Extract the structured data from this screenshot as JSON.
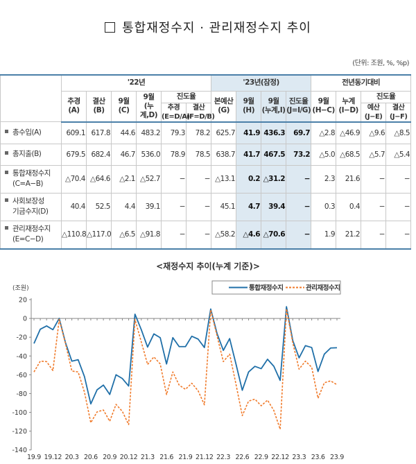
{
  "title": "통합재정수지 · 관리재정수지 추이",
  "unit": "(단위: 조원, %, %p)",
  "table": {
    "groups": {
      "y22": "'22년",
      "y23": "'23년(잠정)",
      "yoy": "전년동기대비"
    },
    "progress": "진도율",
    "cols": {
      "A": [
        "추경",
        "(A)"
      ],
      "B": [
        "결산",
        "(B)"
      ],
      "C": [
        "9월",
        "(C)"
      ],
      "D": [
        "9월",
        "(누계,D)"
      ],
      "E": [
        "추경",
        "(E=D/A)"
      ],
      "F": [
        "결산",
        "(F=D/B)"
      ],
      "G": [
        "본예산",
        "(G)"
      ],
      "H": [
        "9월",
        "(H)"
      ],
      "I": [
        "9월",
        "(누계,I)"
      ],
      "J": [
        "진도율",
        "(J=I/G)"
      ],
      "HC": [
        "9월",
        "(H−C)"
      ],
      "ID": [
        "누계",
        "(I−D)"
      ],
      "JE": [
        "예산",
        "(J−E)"
      ],
      "JF": [
        "결산",
        "(J−F)"
      ]
    },
    "rows": [
      {
        "label": [
          "총수입(A)"
        ],
        "values": [
          "609.1",
          "617.8",
          "44.6",
          "483.2",
          "79.3",
          "78.2",
          "625.7",
          "41.9",
          "436.3",
          "69.7",
          "△2.8",
          "△46.9",
          "△9.6",
          "△8.5"
        ]
      },
      {
        "label": [
          "총지출(B)"
        ],
        "values": [
          "679.5",
          "682.4",
          "46.7",
          "536.0",
          "78.9",
          "78.5",
          "638.7",
          "41.7",
          "467.5",
          "73.2",
          "△5.0",
          "△68.5",
          "△5.7",
          "△5.4"
        ]
      },
      {
        "label": [
          "통합재정수지",
          "(C=A−B)"
        ],
        "values": [
          "△70.4",
          "△64.6",
          "△2.1",
          "△52.7",
          "−",
          "−",
          "△13.1",
          "0.2",
          "△31.2",
          "−",
          "2.3",
          "21.6",
          "−",
          "−"
        ]
      },
      {
        "label": [
          "사회보장성",
          "기금수지(D)"
        ],
        "values": [
          "40.4",
          "52.5",
          "4.4",
          "39.1",
          "−",
          "−",
          "45.1",
          "4.7",
          "39.4",
          "−",
          "0.3",
          "0.4",
          "−",
          "−"
        ]
      },
      {
        "label": [
          "관리재정수지",
          "(E=C−D)"
        ],
        "values": [
          "△110.8",
          "△117.0",
          "△6.5",
          "△91.8",
          "−",
          "−",
          "△58.2",
          "△4.6",
          "△70.6",
          "−",
          "1.9",
          "21.2",
          "−",
          "−"
        ]
      }
    ]
  },
  "chart_title": "<재정수지 추이(누계 기준)>",
  "chart_data": {
    "type": "line",
    "ylabel": "(조원)",
    "ylim": [
      -140,
      20
    ],
    "yticks": [
      20,
      0,
      -20,
      -40,
      -60,
      -80,
      -100,
      -120,
      -140
    ],
    "xtick_labels": [
      "19.9",
      "19.12",
      "20.3",
      "20.6",
      "20.9",
      "20.12",
      "21.3",
      "21.6",
      "21.9",
      "21.12",
      "22.3",
      "22.6",
      "22.9",
      "22.12",
      "23.3",
      "23.6",
      "23.9"
    ],
    "x_start": "19.9",
    "x_end": "23.9",
    "legend": "top-right",
    "series": [
      {
        "name": "통합재정수지",
        "color": "#1f6fa8",
        "style": "solid",
        "values": [
          -26.7,
          -11.5,
          -8,
          -12,
          0,
          -26,
          -45.5,
          -44,
          -62,
          -91,
          -76,
          -71,
          -81,
          -60,
          -64,
          -72,
          4.5,
          -12,
          -30.5,
          -16.5,
          -20.5,
          -48.5,
          -20.5,
          -30,
          -30,
          -19,
          -22,
          -31,
          10,
          -16,
          -34,
          -21.5,
          -48.5,
          -76.5,
          -57,
          -51,
          -53.5,
          -43.5,
          -51,
          -66,
          12.5,
          -23.5,
          -42,
          -29,
          -31,
          -56.5,
          -38,
          -31.5,
          -31.2
        ]
      },
      {
        "name": "관리재정수지",
        "color": "#f07a2a",
        "style": "dashed",
        "values": [
          -57,
          -45.5,
          -46,
          -55.5,
          -1,
          -27,
          -56,
          -57,
          -78.5,
          -111,
          -99.5,
          -97.5,
          -109.5,
          -91.5,
          -99,
          -113,
          -1,
          -25,
          -49,
          -41,
          -48.5,
          -81,
          -57,
          -71,
          -75.5,
          -69,
          -77,
          -92,
          9,
          -18.5,
          -46,
          -38,
          -70,
          -103.5,
          -88,
          -86,
          -93,
          -87,
          -98,
          -118,
          10,
          -26,
          -54,
          -45.5,
          -52,
          -85,
          -68.5,
          -66.5,
          -70.6
        ]
      }
    ]
  }
}
